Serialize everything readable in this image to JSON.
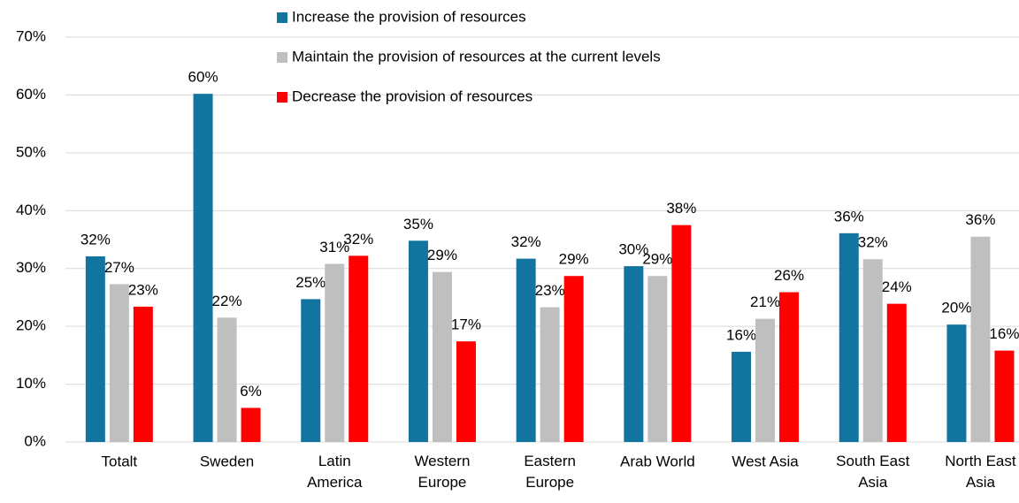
{
  "chart_data": {
    "type": "bar",
    "categories": [
      "Totalt",
      "Sweden",
      "Latin America",
      "Western Europe",
      "Eastern Europe",
      "Arab World",
      "West Asia",
      "South East Asia",
      "North East Asia"
    ],
    "series": [
      {
        "name": "Increase the provision of resources",
        "color": "#12759f",
        "values": [
          32.1,
          60.2,
          24.7,
          34.8,
          31.7,
          30.4,
          15.6,
          36.1,
          20.3
        ],
        "value_labels": [
          "32%",
          "60%",
          "25%",
          "35%",
          "32%",
          "30%",
          "16%",
          "36%",
          "20%"
        ]
      },
      {
        "name": "Maintain the provision of resources at the current levels",
        "color": "#bfbfbf",
        "values": [
          27.3,
          21.5,
          30.8,
          29.4,
          23.3,
          28.7,
          21.3,
          31.6,
          35.5
        ],
        "value_labels": [
          "27%",
          "22%",
          "31%",
          "29%",
          "23%",
          "29%",
          "21%",
          "32%",
          "36%"
        ]
      },
      {
        "name": "Decrease the provision of resources",
        "color": "#ff0000",
        "values": [
          23.4,
          5.9,
          32.2,
          17.4,
          28.7,
          37.5,
          25.9,
          23.9,
          15.8
        ],
        "value_labels": [
          "23%",
          "6%",
          "32%",
          "17%",
          "29%",
          "38%",
          "26%",
          "24%",
          "16%"
        ]
      }
    ],
    "ylim": [
      0,
      70
    ],
    "yticks": [
      {
        "value": 0,
        "label": "0%"
      },
      {
        "value": 10,
        "label": "10%"
      },
      {
        "value": 20,
        "label": "20%"
      },
      {
        "value": 30,
        "label": "30%"
      },
      {
        "value": 40,
        "label": "40%"
      },
      {
        "value": 50,
        "label": "50%"
      },
      {
        "value": 60,
        "label": "60%"
      },
      {
        "value": 70,
        "label": "70%"
      }
    ],
    "grid": true,
    "legend": "top"
  }
}
